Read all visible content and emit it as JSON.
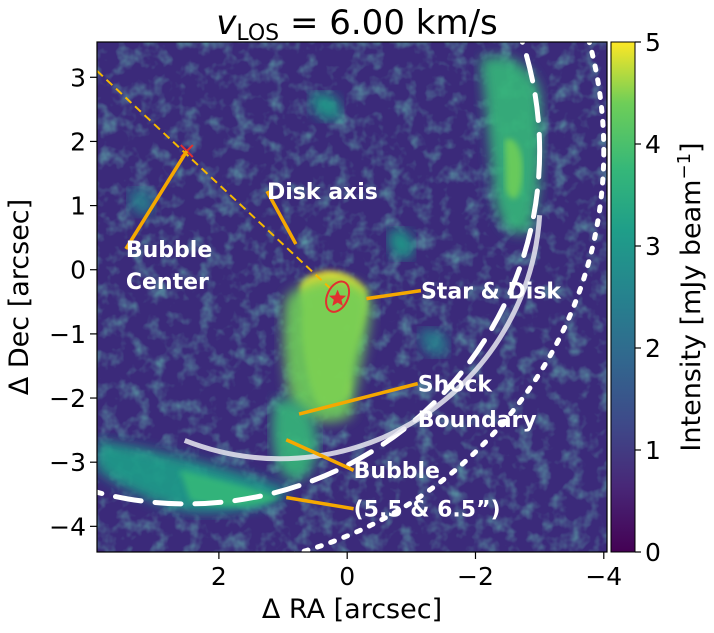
{
  "chart_data": {
    "type": "heatmap",
    "title_symbol": "v",
    "title_subscript": "LOS",
    "title_value": " = 6.00 km/s",
    "xlabel": "Δ RA [arcsec]",
    "ylabel": "Δ Dec [arcsec]",
    "xlim": [
      3.9,
      -4.05
    ],
    "ylim": [
      -4.4,
      3.55
    ],
    "x_ticks": [
      2,
      0,
      -2,
      -4
    ],
    "x_tick_labels": [
      "2",
      "0",
      "−2",
      "−4"
    ],
    "y_ticks": [
      3,
      2,
      1,
      0,
      -1,
      -2,
      -3,
      -4
    ],
    "y_tick_labels": [
      "3",
      "2",
      "1",
      "0",
      "−1",
      "−2",
      "−3",
      "−4"
    ],
    "colorbar": {
      "label_main": "Intensity [mJy beam",
      "label_exp": "−1",
      "label_close": "]",
      "range": [
        0,
        5
      ],
      "ticks": [
        0,
        1,
        2,
        3,
        4,
        5
      ],
      "tick_labels": [
        "0",
        "1",
        "2",
        "3",
        "4",
        "5"
      ],
      "colormap": "viridis"
    },
    "star": {
      "x": 0.15,
      "y": -0.45
    },
    "disk_ellipse": {
      "x": 0.15,
      "y": -0.42,
      "rx": 0.16,
      "ry": 0.25
    },
    "bubble_center": {
      "x": 2.5,
      "y": 1.85
    },
    "disk_axis": {
      "x1": 3.9,
      "y1": 3.1,
      "x2": 0.2,
      "y2": -0.35
    },
    "annotations": [
      {
        "text": "Disk axis",
        "text_x": 1.25,
        "text_y": 1.1,
        "ptr_x": 0.8,
        "ptr_y": 0.4
      },
      {
        "text": "Bubble",
        "text_x": 3.45,
        "text_y": 0.2,
        "ptr_x": 2.5,
        "ptr_y": 1.85
      },
      {
        "text": "Center",
        "text_x": 3.45,
        "text_y": -0.3,
        "ptr_x": 2.5,
        "ptr_y": 1.85
      },
      {
        "text": "Star & Disk",
        "text_x": -1.15,
        "text_y": -0.45,
        "ptr_x": -0.3,
        "ptr_y": -0.45
      },
      {
        "text": "Shock",
        "text_x": -1.1,
        "text_y": -1.9,
        "ptr_x": 0.75,
        "ptr_y": -2.25
      },
      {
        "text": "Boundary",
        "text_x": -1.1,
        "text_y": -2.45,
        "ptr_x": 0.75,
        "ptr_y": -2.25
      },
      {
        "text": "Bubble",
        "text_x": -0.1,
        "text_y": -3.25,
        "ptr_x": 0.95,
        "ptr_y": -2.65
      },
      {
        "text": "(5.5 & 6.5”)",
        "text_x": -0.1,
        "text_y": -3.85,
        "ptr_x": 0.95,
        "ptr_y": -3.55
      }
    ],
    "shock_boundary_radius_arcsec": 4.05,
    "bubble_radii_arcsec": [
      5.5,
      6.5
    ]
  }
}
